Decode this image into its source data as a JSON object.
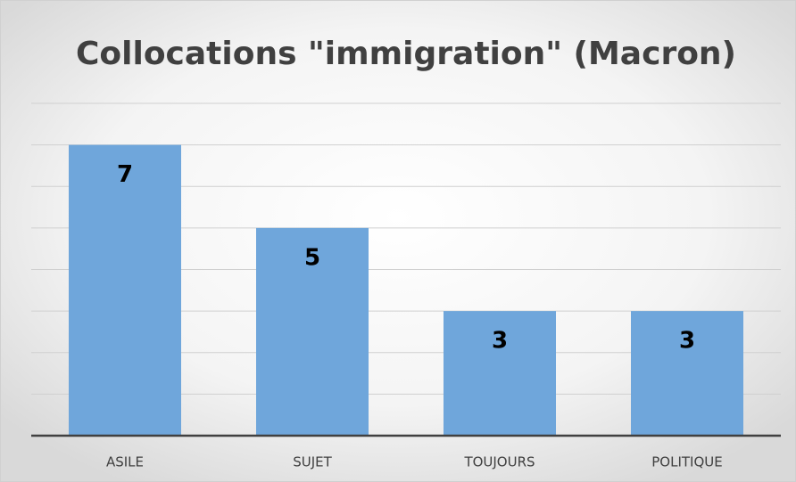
{
  "chart_data": {
    "type": "bar",
    "title": "Collocations \"immigration\" (Macron)",
    "categories": [
      "ASILE",
      "SUJET",
      "TOUJOURS",
      "POLITIQUE"
    ],
    "values": [
      7,
      5,
      3,
      3
    ],
    "color": "#6fa6db",
    "ylim": [
      0,
      8
    ],
    "yticks": [
      0,
      1,
      2,
      3,
      4,
      5,
      6,
      7,
      8
    ],
    "grid": true
  }
}
